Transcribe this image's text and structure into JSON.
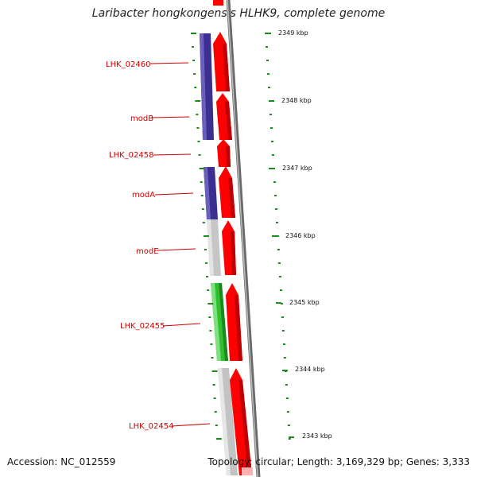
{
  "title": "Laribacter hongkongensis HLHK9, complete genome",
  "accession": "Accession: NC_012559",
  "topology": "Topology: circular; Length: 3,169,329 bp; Genes: 3,333",
  "colors": {
    "cds_forward": "#ff0000",
    "cds_reverse_blue": "#3b2f8f",
    "cds_reverse_gray": "#c8c8c8",
    "cds_reverse_green": "#33cc33",
    "backbone": "#7a7a7a",
    "ticks": "#1a8a1a",
    "gene_label": "#cc0000"
  },
  "genes": [
    {
      "name": "LHK_02460",
      "strand": "reverse",
      "color": "blue"
    },
    {
      "name": "modB",
      "strand": "reverse",
      "color": "blue"
    },
    {
      "name": "LHK_02458",
      "strand": "forward",
      "color": "red"
    },
    {
      "name": "modA",
      "strand": "reverse",
      "color": "blue"
    },
    {
      "name": "modE",
      "strand": "reverse",
      "color": "gray"
    },
    {
      "name": "LHK_02455",
      "strand": "reverse",
      "color": "green"
    },
    {
      "name": "LHK_02454",
      "strand": "reverse",
      "color": "gray"
    }
  ],
  "kbp_marks": [
    "2349 kbp",
    "2348 kbp",
    "2347 kbp",
    "2346 kbp",
    "2345 kbp",
    "2344 kbp",
    "2343 kbp"
  ]
}
